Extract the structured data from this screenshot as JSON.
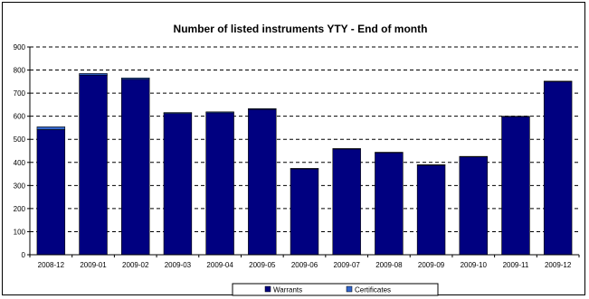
{
  "chart_data": {
    "type": "bar",
    "stacked": true,
    "title": "Number of listed instruments YTY - End of month",
    "xlabel": "",
    "ylabel": "",
    "categories": [
      "2008-12",
      "2009-01",
      "2009-02",
      "2009-03",
      "2009-04",
      "2009-05",
      "2009-06",
      "2009-07",
      "2009-08",
      "2009-09",
      "2009-10",
      "2009-11",
      "2009-12"
    ],
    "series": [
      {
        "name": "Warrants",
        "color": "#000080",
        "values": [
          542,
          778,
          760,
          612,
          615,
          630,
          372,
          458,
          442,
          388,
          424,
          598,
          750
        ]
      },
      {
        "name": "Certificates",
        "color": "#3366cc",
        "values": [
          12,
          7,
          6,
          4,
          4,
          3,
          2,
          2,
          2,
          2,
          2,
          2,
          2
        ]
      }
    ],
    "ylim": [
      0,
      900
    ],
    "yticks": [
      "0",
      "100",
      "200",
      "300",
      "400",
      "500",
      "600",
      "700",
      "800",
      "900"
    ],
    "grid": true,
    "legend_position": "bottom"
  }
}
